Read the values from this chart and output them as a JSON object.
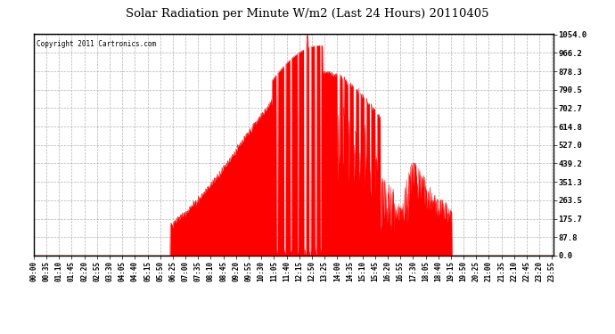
{
  "title": "Solar Radiation per Minute W/m2 (Last 24 Hours) 20110405",
  "copyright": "Copyright 2011 Cartronics.com",
  "bg_color": "#ffffff",
  "plot_bg_color": "#ffffff",
  "bar_color": "#ff0000",
  "dashed_line_color": "#ff0000",
  "grid_color": "#aaaaaa",
  "yticks": [
    0.0,
    87.8,
    175.7,
    263.5,
    351.3,
    439.2,
    527.0,
    614.8,
    702.7,
    790.5,
    878.3,
    966.2,
    1054.0
  ],
  "ymax": 1054.0,
  "ymin": 0.0,
  "num_points": 1440,
  "peak_value": 1054.0,
  "sunrise_idx": 378,
  "sunset_idx": 1158,
  "peak_idx": 770
}
